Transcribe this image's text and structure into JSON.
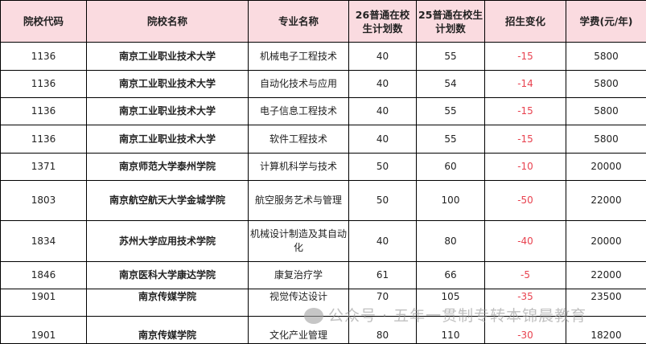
{
  "headers": [
    "院校代码",
    "院校名称",
    "专业名称",
    "26普通在校生计划数",
    "25普通在校生计划数",
    "招生变化",
    "学费(元/年)"
  ],
  "rows": [
    [
      "1136",
      "南京工业职业技术大学",
      "机械电子工程技术",
      "40",
      "55",
      "-15",
      "5800"
    ],
    [
      "1136",
      "南京工业职业技术大学",
      "自动化技术与应用",
      "40",
      "54",
      "-14",
      "5800"
    ],
    [
      "1136",
      "南京工业职业技术大学",
      "电子信息工程技术",
      "40",
      "55",
      "-15",
      "5800"
    ],
    [
      "1136",
      "南京工业职业技术大学",
      "软件工程技术",
      "40",
      "55",
      "-15",
      "5800"
    ],
    [
      "1371",
      "南京师范大学泰州学院",
      "计算机科学与技术",
      "50",
      "60",
      "-10",
      "20000"
    ],
    [
      "1803",
      "南京航空航天大学金城学院",
      "航空服务艺术与管理",
      "50",
      "100",
      "-50",
      "22000"
    ],
    [
      "1834",
      "苏州大学应用技术学院",
      "机械设计制造及其自动化",
      "40",
      "80",
      "-40",
      "20000"
    ],
    [
      "1846",
      "南京医科大学康达学院",
      "康复治疗学",
      "61",
      "66",
      "-5",
      "22000"
    ],
    [
      "1901",
      "南京传媒学院",
      "视觉传达设计",
      "70",
      "105",
      "-35",
      "23500"
    ],
    [
      "1901",
      "南京传媒学院",
      "文化产业管理",
      "80",
      "110",
      "-30",
      "18200"
    ]
  ],
  "watermark": "公众号 · 五年一贯制专转本锦晨教育",
  "colors": {
    "header_bg": "#fadbe0",
    "change_text": "#e8424f"
  }
}
